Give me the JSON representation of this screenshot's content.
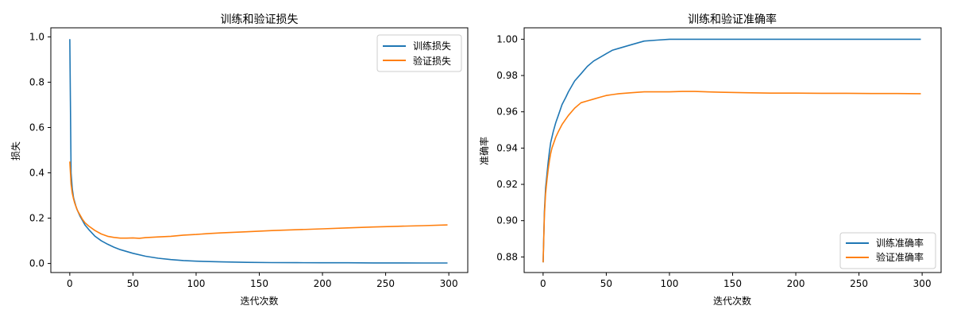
{
  "colors": {
    "train": "#1f77b4",
    "val": "#ff7f0e",
    "axis": "#000000"
  },
  "chart_data": [
    {
      "type": "line",
      "title": "训练和验证损失",
      "xlabel": "迭代次数",
      "ylabel": "损失",
      "xlim": [
        -15,
        315
      ],
      "ylim": [
        -0.04,
        1.04
      ],
      "xticks": [
        0,
        50,
        100,
        150,
        200,
        250,
        300
      ],
      "yticks": [
        0.0,
        0.2,
        0.4,
        0.6,
        0.8,
        1.0
      ],
      "xtick_labels": [
        "0",
        "50",
        "100",
        "150",
        "200",
        "250",
        "300"
      ],
      "ytick_labels": [
        "0.0",
        "0.2",
        "0.4",
        "0.6",
        "0.8",
        "1.0"
      ],
      "legend": "upper right",
      "grid": false,
      "series": [
        {
          "name": "训练损失",
          "color": "#1f77b4",
          "x": [
            0,
            1,
            2,
            3,
            4,
            5,
            6,
            8,
            10,
            12,
            15,
            20,
            25,
            30,
            35,
            40,
            50,
            60,
            70,
            80,
            90,
            100,
            120,
            140,
            160,
            180,
            200,
            220,
            240,
            260,
            280,
            299
          ],
          "y": [
            0.99,
            0.4,
            0.33,
            0.29,
            0.27,
            0.25,
            0.235,
            0.21,
            0.19,
            0.17,
            0.15,
            0.12,
            0.1,
            0.085,
            0.072,
            0.061,
            0.045,
            0.032,
            0.023,
            0.017,
            0.013,
            0.01,
            0.007,
            0.005,
            0.004,
            0.0035,
            0.003,
            0.003,
            0.0025,
            0.0025,
            0.002,
            0.002
          ]
        },
        {
          "name": "验证损失",
          "color": "#ff7f0e",
          "x": [
            0,
            1,
            2,
            3,
            4,
            5,
            6,
            8,
            10,
            12,
            15,
            20,
            25,
            30,
            35,
            40,
            45,
            50,
            55,
            60,
            70,
            80,
            90,
            100,
            110,
            120,
            140,
            160,
            180,
            200,
            220,
            240,
            260,
            280,
            299
          ],
          "y": [
            0.45,
            0.35,
            0.31,
            0.285,
            0.265,
            0.25,
            0.235,
            0.215,
            0.195,
            0.18,
            0.165,
            0.145,
            0.13,
            0.12,
            0.115,
            0.112,
            0.112,
            0.113,
            0.111,
            0.114,
            0.117,
            0.12,
            0.125,
            0.128,
            0.132,
            0.135,
            0.14,
            0.145,
            0.149,
            0.153,
            0.157,
            0.161,
            0.164,
            0.167,
            0.17
          ]
        }
      ]
    },
    {
      "type": "line",
      "title": "训练和验证准确率",
      "xlabel": "迭代次数",
      "ylabel": "准确率",
      "xlim": [
        -15,
        315
      ],
      "ylim": [
        0.8714,
        1.0063
      ],
      "xticks": [
        0,
        50,
        100,
        150,
        200,
        250,
        300
      ],
      "yticks": [
        0.88,
        0.9,
        0.92,
        0.94,
        0.96,
        0.98,
        1.0
      ],
      "xtick_labels": [
        "0",
        "50",
        "100",
        "150",
        "200",
        "250",
        "300"
      ],
      "ytick_labels": [
        "0.88",
        "0.90",
        "0.92",
        "0.94",
        "0.96",
        "0.98",
        "1.00"
      ],
      "legend": "lower right",
      "grid": false,
      "series": [
        {
          "name": "训练准确率",
          "color": "#1f77b4",
          "x": [
            0,
            1,
            2,
            3,
            4,
            5,
            6,
            7,
            8,
            10,
            12,
            15,
            18,
            20,
            25,
            30,
            35,
            40,
            45,
            50,
            55,
            60,
            70,
            80,
            90,
            100,
            110,
            120,
            150,
            200,
            250,
            299
          ],
          "y": [
            0.877,
            0.905,
            0.918,
            0.925,
            0.932,
            0.938,
            0.943,
            0.946,
            0.949,
            0.954,
            0.958,
            0.964,
            0.968,
            0.971,
            0.977,
            0.981,
            0.985,
            0.988,
            0.99,
            0.992,
            0.994,
            0.995,
            0.997,
            0.999,
            0.9995,
            1.0,
            1.0,
            1.0,
            1.0,
            1.0,
            1.0,
            1.0
          ]
        },
        {
          "name": "验证准确率",
          "color": "#ff7f0e",
          "x": [
            0,
            1,
            2,
            3,
            4,
            5,
            6,
            7,
            8,
            10,
            12,
            15,
            18,
            20,
            25,
            30,
            35,
            40,
            45,
            50,
            55,
            60,
            70,
            80,
            90,
            100,
            110,
            120,
            140,
            160,
            180,
            200,
            220,
            240,
            260,
            280,
            299
          ],
          "y": [
            0.877,
            0.903,
            0.915,
            0.922,
            0.928,
            0.933,
            0.937,
            0.94,
            0.942,
            0.946,
            0.949,
            0.953,
            0.956,
            0.958,
            0.962,
            0.965,
            0.966,
            0.967,
            0.968,
            0.969,
            0.9695,
            0.97,
            0.9705,
            0.971,
            0.971,
            0.971,
            0.9712,
            0.9712,
            0.9708,
            0.9705,
            0.9703,
            0.9703,
            0.9702,
            0.9702,
            0.9701,
            0.9701,
            0.97
          ]
        }
      ]
    }
  ]
}
